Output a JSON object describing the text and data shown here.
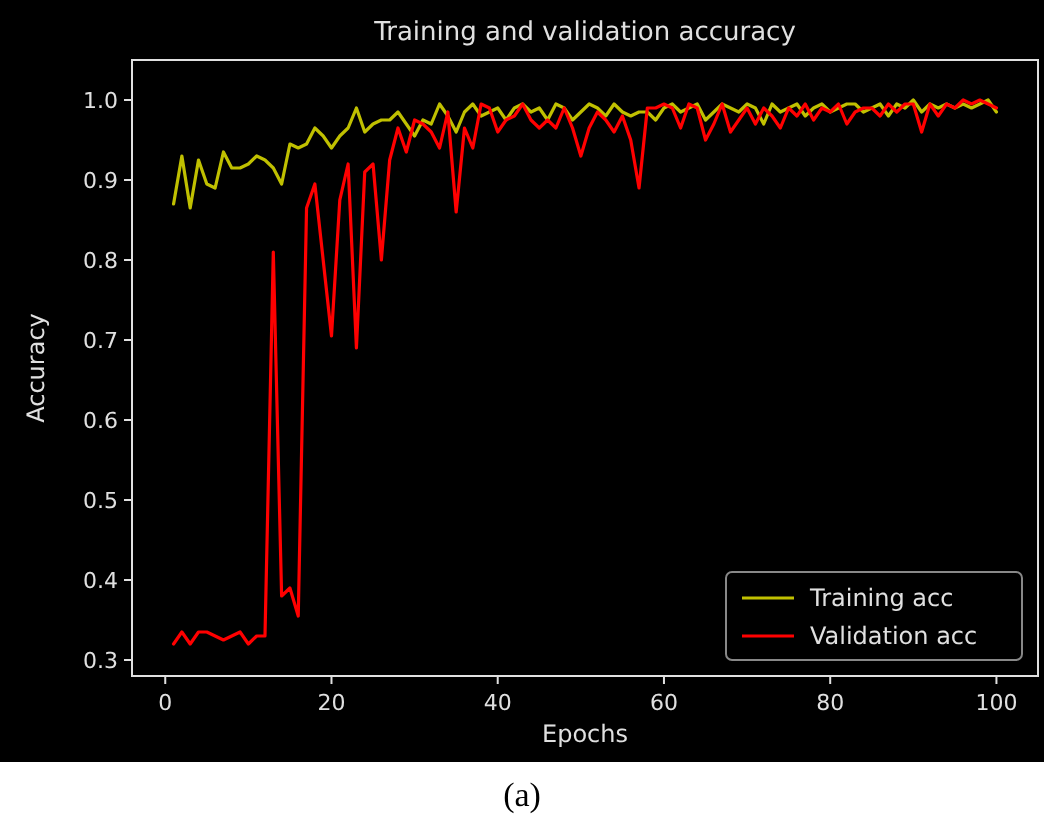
{
  "chart_data": {
    "type": "line",
    "title": "Training and validation accuracy",
    "xlabel": "Epochs",
    "ylabel": "Accuracy",
    "x": [
      1,
      2,
      3,
      4,
      5,
      6,
      7,
      8,
      9,
      10,
      11,
      12,
      13,
      14,
      15,
      16,
      17,
      18,
      19,
      20,
      21,
      22,
      23,
      24,
      25,
      26,
      27,
      28,
      29,
      30,
      31,
      32,
      33,
      34,
      35,
      36,
      37,
      38,
      39,
      40,
      41,
      42,
      43,
      44,
      45,
      46,
      47,
      48,
      49,
      50,
      51,
      52,
      53,
      54,
      55,
      56,
      57,
      58,
      59,
      60,
      61,
      62,
      63,
      64,
      65,
      66,
      67,
      68,
      69,
      70,
      71,
      72,
      73,
      74,
      75,
      76,
      77,
      78,
      79,
      80,
      81,
      82,
      83,
      84,
      85,
      86,
      87,
      88,
      89,
      90,
      91,
      92,
      93,
      94,
      95,
      96,
      97,
      98,
      99,
      100
    ],
    "series": [
      {
        "name": "Training acc",
        "color": "#c0c000",
        "values": [
          0.87,
          0.93,
          0.865,
          0.925,
          0.895,
          0.89,
          0.935,
          0.915,
          0.915,
          0.92,
          0.93,
          0.925,
          0.915,
          0.895,
          0.945,
          0.94,
          0.945,
          0.965,
          0.955,
          0.94,
          0.955,
          0.965,
          0.99,
          0.96,
          0.97,
          0.975,
          0.975,
          0.985,
          0.97,
          0.955,
          0.975,
          0.97,
          0.995,
          0.98,
          0.96,
          0.985,
          0.995,
          0.98,
          0.985,
          0.99,
          0.975,
          0.99,
          0.995,
          0.985,
          0.99,
          0.975,
          0.995,
          0.99,
          0.975,
          0.985,
          0.995,
          0.99,
          0.98,
          0.995,
          0.985,
          0.98,
          0.985,
          0.985,
          0.975,
          0.99,
          0.995,
          0.985,
          0.99,
          0.995,
          0.975,
          0.985,
          0.995,
          0.99,
          0.985,
          0.995,
          0.99,
          0.97,
          0.995,
          0.985,
          0.99,
          0.995,
          0.98,
          0.99,
          0.995,
          0.985,
          0.99,
          0.995,
          0.995,
          0.985,
          0.99,
          0.995,
          0.98,
          0.995,
          0.99,
          1.0,
          0.985,
          0.995,
          0.99,
          0.995,
          0.99,
          0.995,
          0.99,
          0.995,
          1.0,
          0.985
        ]
      },
      {
        "name": "Validation acc",
        "color": "#ff0000",
        "values": [
          0.32,
          0.335,
          0.32,
          0.335,
          0.335,
          0.33,
          0.325,
          0.33,
          0.335,
          0.32,
          0.33,
          0.33,
          0.81,
          0.38,
          0.39,
          0.355,
          0.865,
          0.895,
          0.8,
          0.705,
          0.875,
          0.92,
          0.69,
          0.91,
          0.92,
          0.8,
          0.925,
          0.965,
          0.935,
          0.975,
          0.97,
          0.96,
          0.94,
          0.985,
          0.86,
          0.965,
          0.94,
          0.995,
          0.99,
          0.96,
          0.975,
          0.98,
          0.995,
          0.975,
          0.965,
          0.975,
          0.965,
          0.99,
          0.965,
          0.93,
          0.965,
          0.985,
          0.975,
          0.96,
          0.98,
          0.95,
          0.89,
          0.99,
          0.99,
          0.995,
          0.99,
          0.965,
          0.995,
          0.99,
          0.95,
          0.97,
          0.995,
          0.96,
          0.975,
          0.99,
          0.97,
          0.99,
          0.98,
          0.965,
          0.99,
          0.98,
          0.995,
          0.975,
          0.99,
          0.985,
          0.995,
          0.97,
          0.985,
          0.99,
          0.99,
          0.98,
          0.995,
          0.985,
          0.995,
          0.995,
          0.96,
          0.995,
          0.98,
          0.995,
          0.99,
          1.0,
          0.995,
          1.0,
          0.995,
          0.99
        ]
      }
    ],
    "xlim": [
      -4,
      105
    ],
    "xticks": [
      0,
      20,
      40,
      60,
      80,
      100
    ],
    "ylim": [
      0.28,
      1.05
    ],
    "yticks": [
      {
        "value": 0.3,
        "label": "0.3"
      },
      {
        "value": 0.4,
        "label": "0.4"
      },
      {
        "value": 0.5,
        "label": "0.5"
      },
      {
        "value": 0.6,
        "label": "0.6"
      },
      {
        "value": 0.7,
        "label": "0.7"
      },
      {
        "value": 0.8,
        "label": "0.8"
      },
      {
        "value": 0.9,
        "label": "0.9"
      },
      {
        "value": 1.0,
        "label": "1.0"
      }
    ],
    "grid": false,
    "legend": "bottom right",
    "line_style": "solid",
    "annotations": [
      "(a)"
    ]
  }
}
